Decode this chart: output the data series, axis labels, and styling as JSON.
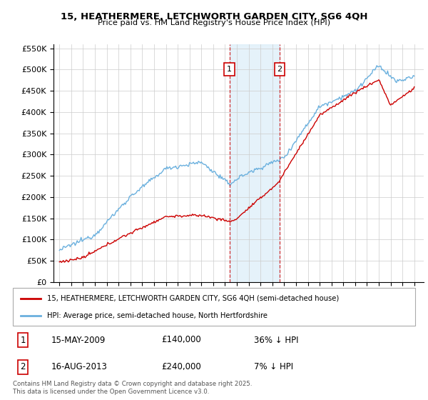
{
  "title_line1": "15, HEATHERMERE, LETCHWORTH GARDEN CITY, SG6 4QH",
  "title_line2": "Price paid vs. HM Land Registry's House Price Index (HPI)",
  "legend_label_red": "15, HEATHERMERE, LETCHWORTH GARDEN CITY, SG6 4QH (semi-detached house)",
  "legend_label_blue": "HPI: Average price, semi-detached house, North Hertfordshire",
  "footnote": "Contains HM Land Registry data © Crown copyright and database right 2025.\nThis data is licensed under the Open Government Licence v3.0.",
  "sale1": {
    "label": "1",
    "date": "15-MAY-2009",
    "price": "£140,000",
    "pct": "36% ↓ HPI"
  },
  "sale2": {
    "label": "2",
    "date": "16-AUG-2013",
    "price": "£240,000",
    "pct": "7% ↓ HPI"
  },
  "sale1_x": 2009.37,
  "sale2_x": 2013.62,
  "sale1_y": 140000,
  "sale2_y": 240000,
  "color_red": "#cc0000",
  "color_blue": "#6ab0de",
  "color_shade": "#d4eaf7",
  "ylim": [
    0,
    560000
  ],
  "xlim": [
    1994.5,
    2025.8
  ],
  "yticks": [
    0,
    50000,
    100000,
    150000,
    200000,
    250000,
    300000,
    350000,
    400000,
    450000,
    500000,
    550000
  ],
  "ytick_labels": [
    "£0",
    "£50K",
    "£100K",
    "£150K",
    "£200K",
    "£250K",
    "£300K",
    "£350K",
    "£400K",
    "£450K",
    "£500K",
    "£550K"
  ]
}
